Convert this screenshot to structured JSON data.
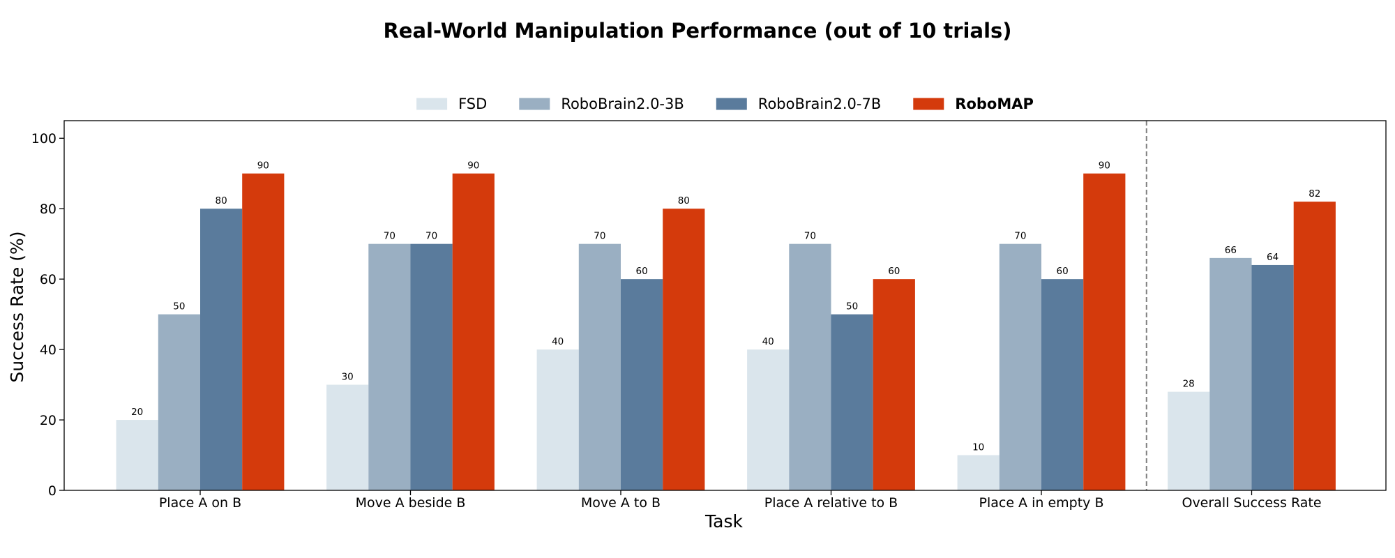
{
  "chart_data": {
    "type": "bar",
    "title": "Real-World Manipulation Performance (out of 10 trials)",
    "xlabel": "Task",
    "ylabel": "Success Rate (%)",
    "ylim": [
      0,
      105
    ],
    "yticks": [
      0,
      20,
      40,
      60,
      80,
      100
    ],
    "grid": false,
    "legend_position": "top-center",
    "categories": [
      "Place A on B",
      "Move A beside B",
      "Move A to B",
      "Place A relative to B",
      "Place A in empty B",
      "Overall Success Rate"
    ],
    "separator_before_category": "Overall Success Rate",
    "series": [
      {
        "name": "FSD",
        "color": "#dae5ec",
        "bold": false,
        "values": [
          20,
          30,
          40,
          40,
          10,
          28
        ]
      },
      {
        "name": "RoboBrain2.0-3B",
        "color": "#9aafc2",
        "bold": false,
        "values": [
          50,
          70,
          70,
          70,
          70,
          66
        ]
      },
      {
        "name": "RoboBrain2.0-7B",
        "color": "#5a7b9c",
        "bold": false,
        "values": [
          80,
          70,
          60,
          50,
          60,
          64
        ]
      },
      {
        "name": "RoboMAP",
        "color": "#d43a0c",
        "bold": true,
        "values": [
          90,
          90,
          80,
          60,
          90,
          82
        ]
      }
    ]
  }
}
